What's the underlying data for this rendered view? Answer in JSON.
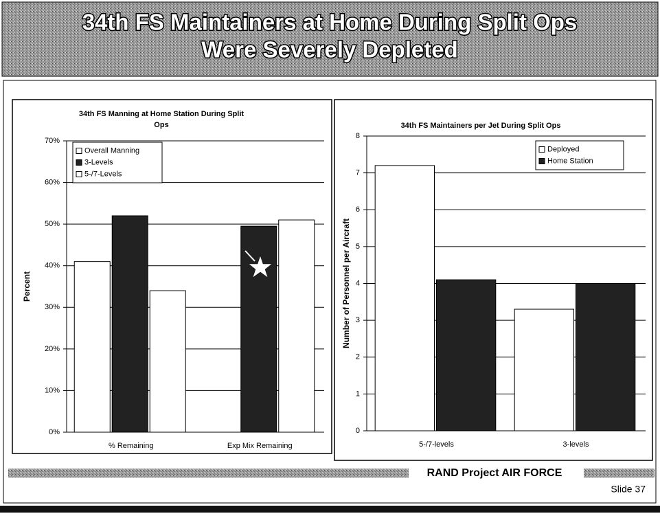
{
  "slide": {
    "title_lines": [
      "34th FS Maintainers at Home During Split Ops",
      "Were Severely Depleted"
    ],
    "footer": "RAND Project AIR FORCE",
    "slide_number": "Slide 37"
  },
  "chart_data": [
    {
      "type": "bar",
      "title_lines": [
        "34th FS Manning at Home Station During Split",
        "Ops"
      ],
      "ylabel": "Percent",
      "categories": [
        "% Remaining",
        "Exp Mix Remaining"
      ],
      "series": [
        {
          "name": "Overall Manning",
          "color": "#ffffff",
          "values": [
            41,
            null
          ]
        },
        {
          "name": "3-Levels",
          "color": "#222222",
          "values": [
            52,
            49.5
          ]
        },
        {
          "name": "5-/7-Levels",
          "color": "#ffffff",
          "values": [
            34,
            51
          ]
        }
      ],
      "ylim": [
        0,
        70
      ],
      "yticks": [
        {
          "value": 0,
          "label": "0%"
        },
        {
          "value": 10,
          "label": "10%"
        },
        {
          "value": 20,
          "label": "20%"
        },
        {
          "value": 30,
          "label": "30%"
        },
        {
          "value": 40,
          "label": "40%"
        },
        {
          "value": 50,
          "label": "50%"
        },
        {
          "value": 60,
          "label": "60%"
        },
        {
          "value": 70,
          "label": "70%"
        }
      ],
      "grid": true,
      "legend": "upper left"
    },
    {
      "type": "bar",
      "title_lines": [
        "34th FS Maintainers per Jet During Split Ops"
      ],
      "ylabel": "Number of Personnel per Aircraft",
      "categories": [
        "5-/7-levels",
        "3-levels"
      ],
      "series": [
        {
          "name": "Deployed",
          "color": "#ffffff",
          "values": [
            7.2,
            3.3
          ]
        },
        {
          "name": "Home Station",
          "color": "#222222",
          "values": [
            4.1,
            4.0
          ]
        }
      ],
      "ylim": [
        0,
        8
      ],
      "yticks": [
        0,
        1,
        2,
        3,
        4,
        5,
        6,
        7,
        8
      ],
      "grid": true,
      "legend": "upper right"
    }
  ]
}
